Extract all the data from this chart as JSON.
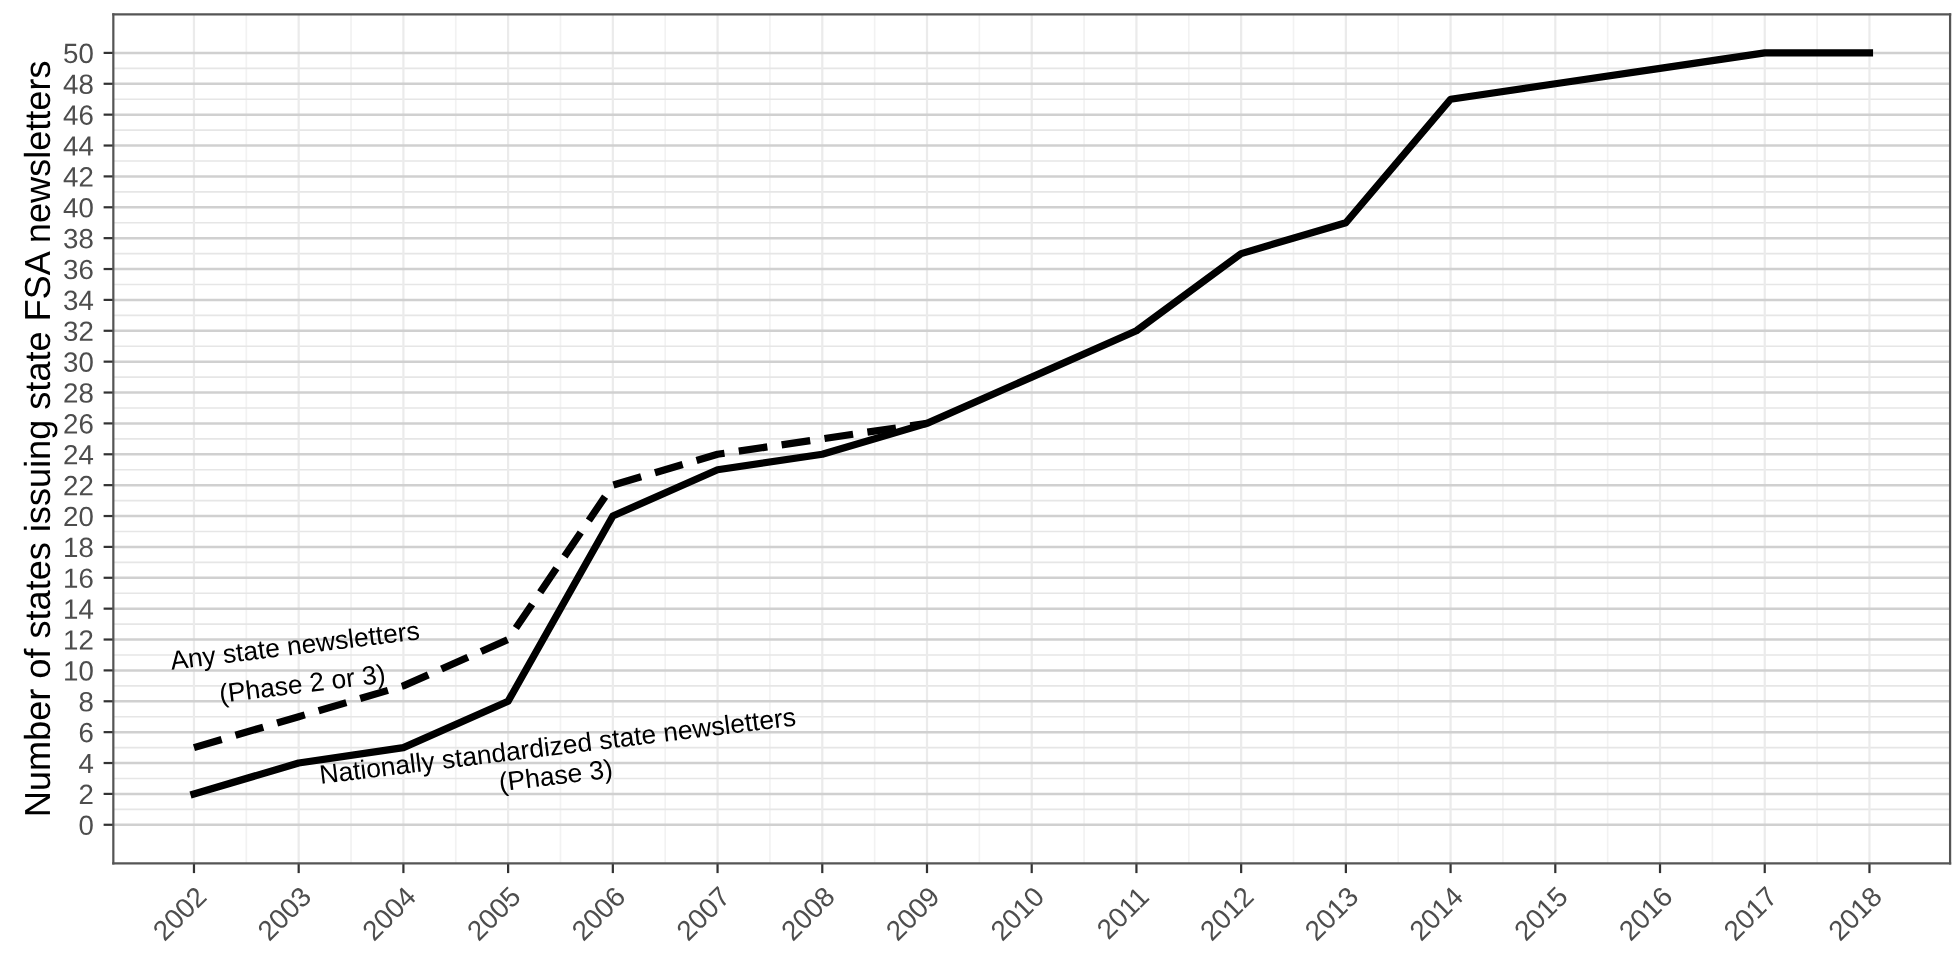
{
  "chart_data": {
    "type": "line",
    "ylabel": "Number of states issuing state FSA newsletters",
    "x": [
      2002,
      2003,
      2004,
      2005,
      2006,
      2007,
      2008,
      2009,
      2010,
      2011,
      2012,
      2013,
      2014,
      2015,
      2016,
      2017,
      2018
    ],
    "series": [
      {
        "color": "#000000",
        "line_style": "dashed",
        "values": [
          5,
          7,
          9,
          12,
          22,
          24,
          25,
          26,
          null,
          null,
          null,
          null,
          null,
          null,
          null,
          null,
          null
        ]
      },
      {
        "color": "#000000",
        "line_style": "solid",
        "values": [
          2,
          4,
          5,
          8,
          20,
          23,
          24,
          26,
          29,
          32,
          37,
          39,
          47,
          48,
          49,
          50,
          50
        ]
      }
    ],
    "xlim": [
      2001.23,
      2018.77
    ],
    "xticks": [
      2002,
      2003,
      2004,
      2005,
      2006,
      2007,
      2008,
      2009,
      2010,
      2011,
      2012,
      2013,
      2014,
      2015,
      2016,
      2017,
      2018
    ],
    "ylim": [
      -2.5,
      52.5
    ],
    "yticks": [
      0,
      2,
      4,
      6,
      8,
      10,
      12,
      14,
      16,
      18,
      20,
      22,
      24,
      26,
      28,
      30,
      32,
      34,
      36,
      38,
      40,
      42,
      44,
      46,
      48,
      50
    ],
    "grid": true,
    "marker": "none",
    "annotations": [
      "Any state newsletters",
      "(Phase 2 or 3)",
      "Nationally standardized state newsletters",
      "(Phase 3)"
    ]
  }
}
